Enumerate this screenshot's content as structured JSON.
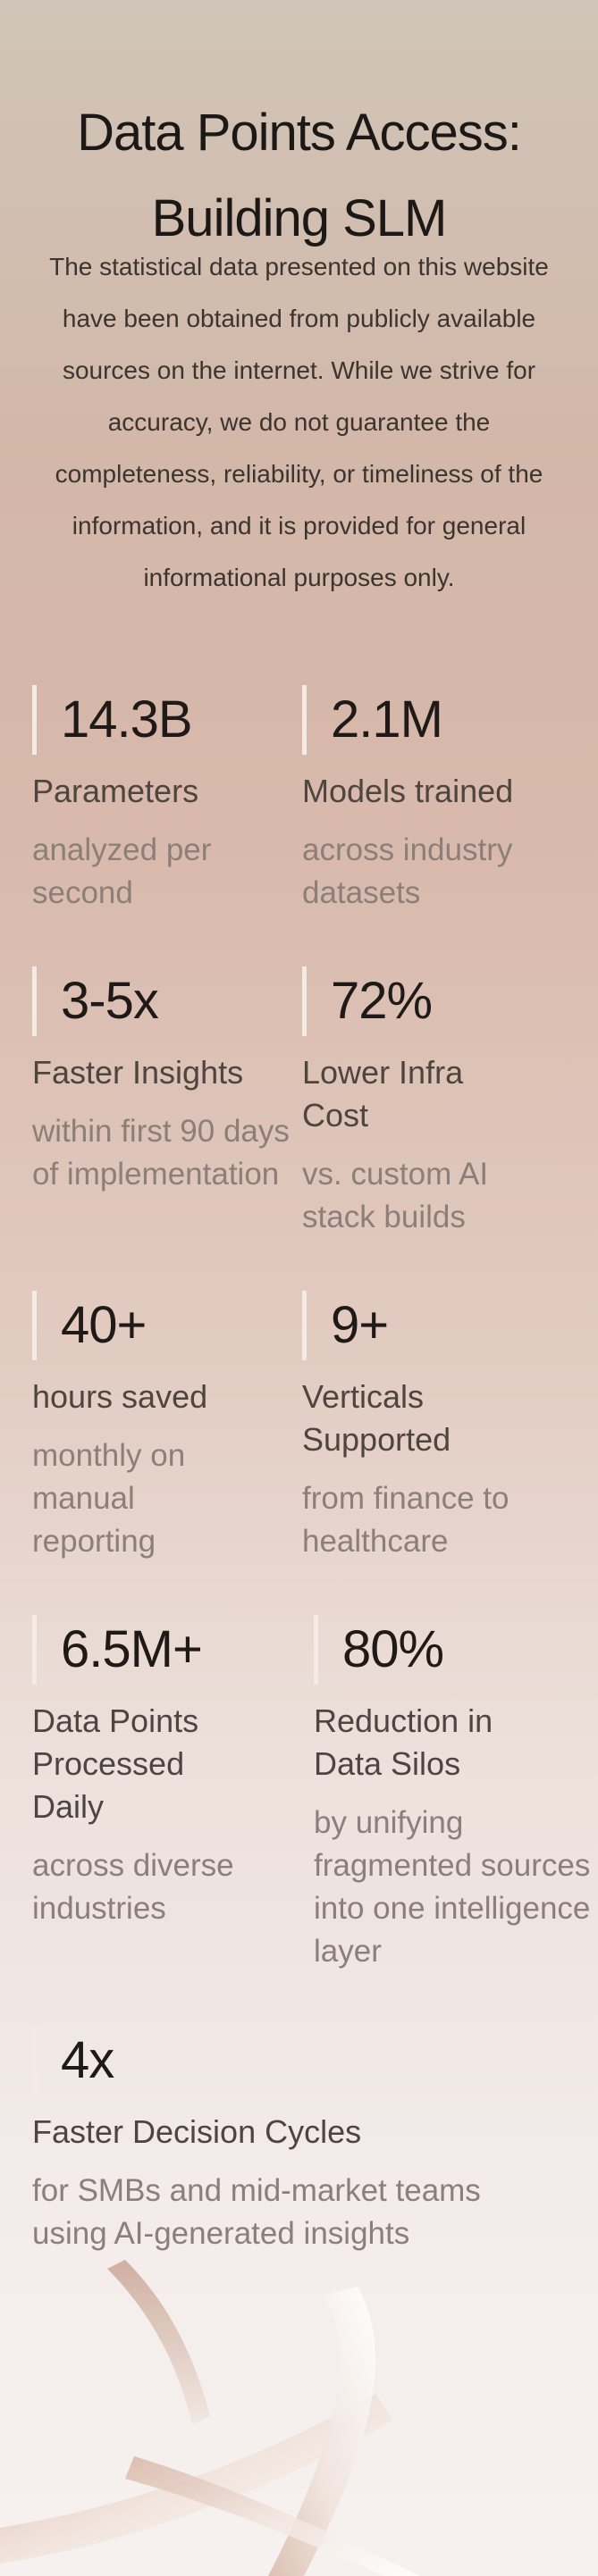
{
  "header": {
    "title_line1": "Data Points Access:",
    "title_line2": "Building SLM",
    "disclaimer": "The statistical data presented on this website have been obtained from publicly available sources on the internet. While we strive for accuracy, we do not guarantee the completeness, reliability, or timeliness of the information, and it is provided for general informational purposes only."
  },
  "stats": [
    {
      "value": "14.3B",
      "label": "Parameters",
      "desc": "analyzed per second"
    },
    {
      "value": "2.1M",
      "label": "Models trained",
      "desc": "across industry datasets"
    },
    {
      "value": "3-5x",
      "label": "Faster Insights",
      "desc": "within first 90 days of implementation"
    },
    {
      "value": "72%",
      "label": "Lower Infra Cost",
      "desc": "vs. custom AI stack builds"
    },
    {
      "value": "40+",
      "label": "hours saved",
      "desc": "monthly on manual reporting"
    },
    {
      "value": "9+",
      "label": "Verticals Supported",
      "desc": "from finance to healthcare"
    },
    {
      "value": "6.5M+",
      "label": "Data Points Processed Daily",
      "desc": "across diverse industries"
    },
    {
      "value": "80%",
      "label": "Reduction in Data Silos",
      "desc": "by unifying fragmented sources into one intelligence layer"
    },
    {
      "value": "4x",
      "label": "Faster Decision Cycles",
      "desc": "for SMBs and mid-market teams using AI-generated insights"
    }
  ]
}
